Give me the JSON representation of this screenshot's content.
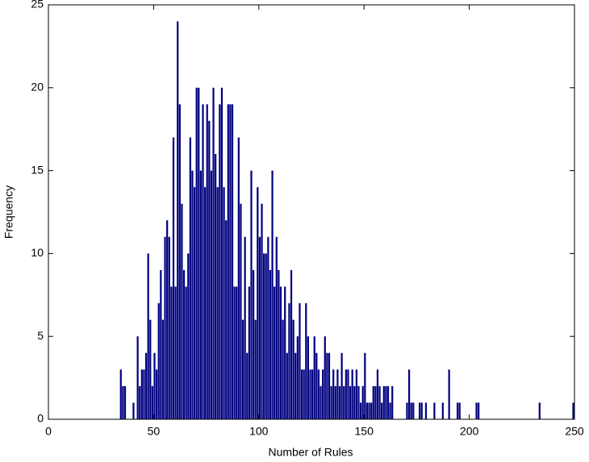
{
  "chart_data": {
    "type": "histogram",
    "xlabel": "Number of Rules",
    "ylabel": "Frequency",
    "color": "#00007f",
    "bins": [
      34,
      35,
      36,
      37,
      38,
      39,
      40,
      41,
      42,
      43,
      44,
      45,
      46,
      47,
      48,
      49,
      50,
      51,
      52,
      53,
      54,
      55,
      56,
      57,
      58,
      59,
      60,
      61,
      62,
      63,
      64,
      65,
      66,
      67,
      68,
      69,
      70,
      71,
      72,
      73,
      74,
      75,
      76,
      77,
      78,
      79,
      80,
      81,
      82,
      83,
      84,
      85,
      86,
      87,
      88,
      89,
      90,
      91,
      92,
      93,
      94,
      95,
      96,
      97,
      98,
      99,
      100,
      101,
      102,
      103,
      104,
      105,
      106,
      107,
      108,
      109,
      110,
      111,
      112,
      113,
      114,
      115,
      116,
      117,
      118,
      119,
      120,
      121,
      122,
      123,
      124,
      125,
      126,
      127,
      128,
      129,
      130,
      131,
      132,
      133,
      134,
      135,
      136,
      137,
      138,
      139,
      140,
      141,
      142,
      143,
      144,
      145,
      146,
      147,
      148,
      149,
      150,
      151,
      152,
      153,
      154,
      155,
      156,
      157,
      158,
      159,
      160,
      161,
      162,
      163,
      164,
      165,
      166,
      167,
      168,
      169,
      170,
      171,
      172,
      173,
      174,
      175,
      176,
      177,
      178,
      179,
      180,
      181,
      182,
      183,
      184,
      185,
      186,
      187,
      188,
      189,
      190,
      191,
      192,
      193,
      194,
      195,
      196,
      197,
      198,
      199,
      200,
      201,
      202,
      203,
      204,
      205,
      206,
      207,
      208,
      209,
      210,
      211,
      212,
      213,
      214,
      215,
      216,
      217,
      218,
      219,
      220,
      221,
      222,
      223,
      224,
      225,
      226,
      227,
      228,
      229,
      230,
      231,
      232,
      233,
      234,
      235,
      236,
      237,
      238,
      239,
      240,
      241,
      242,
      243,
      244,
      245,
      246,
      247,
      248,
      249,
      250,
      251
    ],
    "values": [
      3,
      2,
      2,
      0,
      0,
      0,
      1,
      0,
      5,
      2,
      3,
      3,
      4,
      10,
      6,
      2,
      4,
      3,
      7,
      9,
      6,
      11,
      12,
      11,
      8,
      17,
      8,
      24,
      19,
      13,
      9,
      8,
      10,
      17,
      15,
      14,
      20,
      20,
      15,
      19,
      14,
      19,
      18,
      15,
      20,
      16,
      14,
      19,
      20,
      14,
      12,
      19,
      19,
      19,
      8,
      8,
      17,
      13,
      6,
      11,
      4,
      8,
      15,
      9,
      6,
      14,
      11,
      13,
      10,
      10,
      11,
      9,
      15,
      8,
      11,
      9,
      8,
      6,
      8,
      4,
      7,
      9,
      6,
      4,
      5,
      7,
      3,
      3,
      7,
      5,
      3,
      3,
      5,
      4,
      3,
      2,
      3,
      5,
      4,
      4,
      2,
      3,
      2,
      3,
      2,
      4,
      2,
      3,
      3,
      2,
      3,
      2,
      3,
      2,
      1,
      2,
      4,
      1,
      1,
      1,
      2,
      2,
      3,
      2,
      1,
      2,
      2,
      2,
      1,
      2,
      0,
      0,
      0,
      0,
      0,
      0,
      1,
      3,
      1,
      1,
      0,
      0,
      1,
      1,
      0,
      1,
      0,
      0,
      0,
      1,
      0,
      0,
      0,
      1,
      0,
      0,
      3,
      0,
      0,
      0,
      1,
      1,
      0,
      0,
      0,
      0,
      0,
      0,
      0,
      1,
      1,
      0,
      0,
      0,
      0,
      0,
      0,
      0,
      0,
      0,
      0,
      0,
      0,
      0,
      0,
      0,
      0,
      0,
      0,
      0,
      0,
      0,
      0,
      0,
      0,
      0,
      0,
      0,
      0,
      1,
      0,
      0,
      0,
      0,
      0,
      0,
      0,
      0,
      0,
      0,
      0,
      0,
      0,
      0,
      0,
      1,
      0
    ],
    "xlim": [
      0,
      250
    ],
    "xticks": [
      0,
      50,
      100,
      150,
      200,
      250
    ],
    "ylim": [
      0,
      25
    ],
    "yticks": [
      0,
      5,
      10,
      15,
      20,
      25
    ]
  }
}
